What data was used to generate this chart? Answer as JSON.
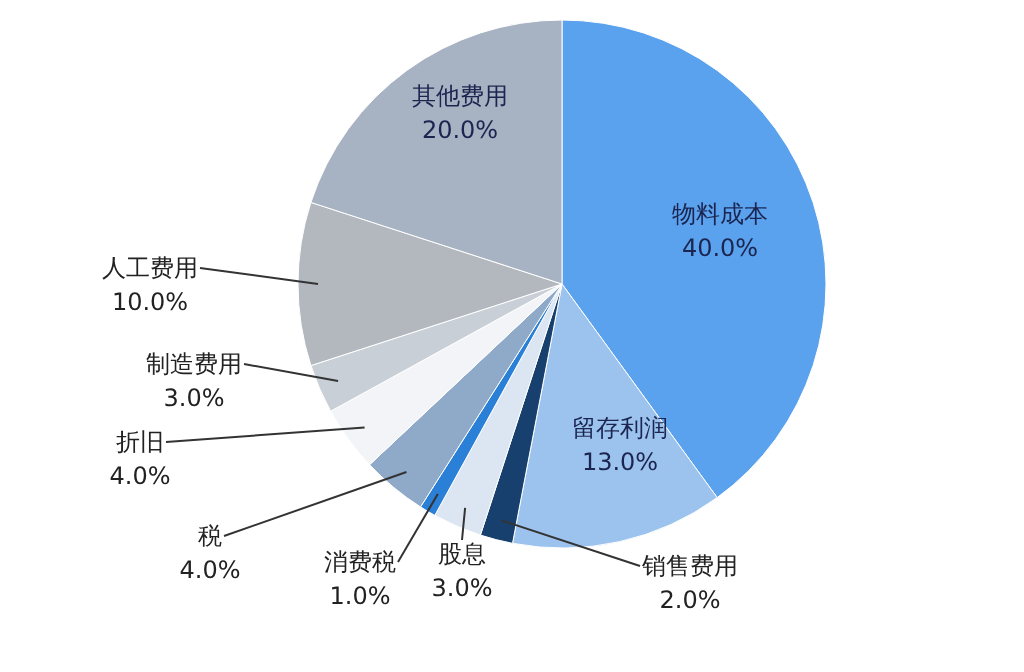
{
  "chart_data": {
    "type": "pie",
    "categories": [
      "物料成本",
      "留存利润",
      "销售费用",
      "股息",
      "消费税",
      "税",
      "折旧",
      "制造费用",
      "人工费用",
      "其他费用"
    ],
    "values": [
      40,
      13,
      2,
      3,
      1,
      4,
      4,
      3,
      10,
      20
    ],
    "value_labels": [
      "40.0%",
      "13.0%",
      "2.0%",
      "3.0%",
      "1.0%",
      "4.0%",
      "4.0%",
      "3.0%",
      "10.0%",
      "20.0%"
    ],
    "colors": [
      "#5aa2ee",
      "#9cc3ee",
      "#17406e",
      "#dce6f2",
      "#2a7fd6",
      "#8fa9c9",
      "#f2f4f7",
      "#c9cfd7",
      "#b3b8bf",
      "#a7b2c2"
    ]
  }
}
